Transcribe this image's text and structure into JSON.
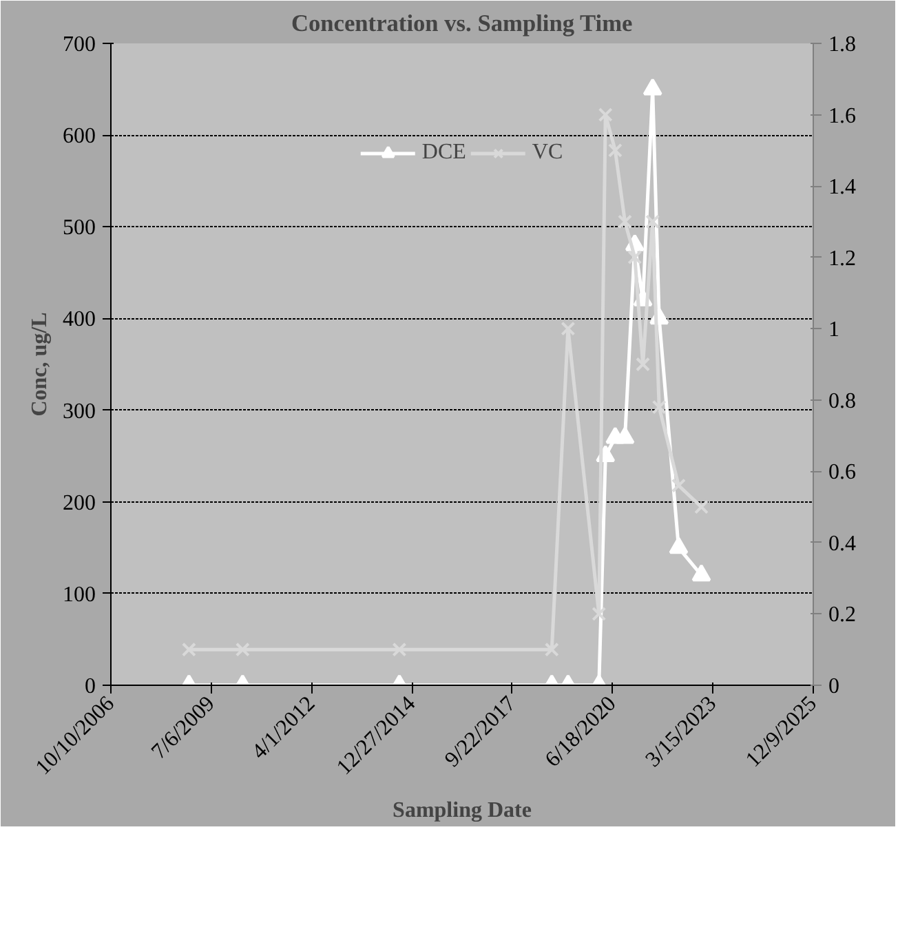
{
  "chart_data": {
    "type": "line",
    "title": "Concentration vs. Sampling Time",
    "xlabel": "Sampling Date",
    "ylabel": "Conc, ug/L",
    "x": [
      "2008-11-26",
      "2010-05-15",
      "2014-08-24",
      "2018-10-21",
      "2019-04-01",
      "2020-02-03",
      "2020-04-08",
      "2020-07-14",
      "2020-10-19",
      "2021-01-25",
      "2021-04-16",
      "2021-07-22",
      "2021-09-25",
      "2022-04-07",
      "2022-11-20"
    ],
    "series": [
      {
        "name": "DCE",
        "color": "#ffffff",
        "marker": "triangle",
        "values": [
          0,
          0,
          0,
          0,
          0,
          0,
          250,
          270,
          270,
          480,
          420,
          650,
          400,
          150,
          120
        ]
      },
      {
        "name": "VC",
        "color": "#d9d9d9",
        "marker": "cross",
        "axis": "y2",
        "values": [
          0.1,
          0.1,
          0.1,
          0.1,
          1.0,
          0.2,
          1.6,
          1.5,
          1.3,
          1.2,
          0.9,
          1.3,
          0.78,
          0.56,
          0.5
        ]
      }
    ],
    "xlim": [
      "2006-10-10",
      "2025-12-09"
    ],
    "xticks": [
      {
        "value": "2006-10-10",
        "label": "10/10/2006"
      },
      {
        "value": "2009-07-06",
        "label": "7/6/2009"
      },
      {
        "value": "2012-04-01",
        "label": "4/1/2012"
      },
      {
        "value": "2014-12-27",
        "label": "12/27/2014"
      },
      {
        "value": "2017-09-22",
        "label": "9/22/2017"
      },
      {
        "value": "2020-06-18",
        "label": "6/18/2020"
      },
      {
        "value": "2023-03-15",
        "label": "3/15/2023"
      },
      {
        "value": "2025-12-09",
        "label": "12/9/2025"
      }
    ],
    "ylim": [
      0,
      700
    ],
    "yticks": [
      0,
      100,
      200,
      300,
      400,
      500,
      600,
      700
    ],
    "y2lim": [
      0,
      1.8
    ],
    "y2ticks": [
      0,
      0.2,
      0.4,
      0.6,
      0.8,
      1,
      1.2,
      1.4,
      1.6,
      1.8
    ],
    "grid": "y",
    "legend": "top",
    "line_style": "solid"
  }
}
